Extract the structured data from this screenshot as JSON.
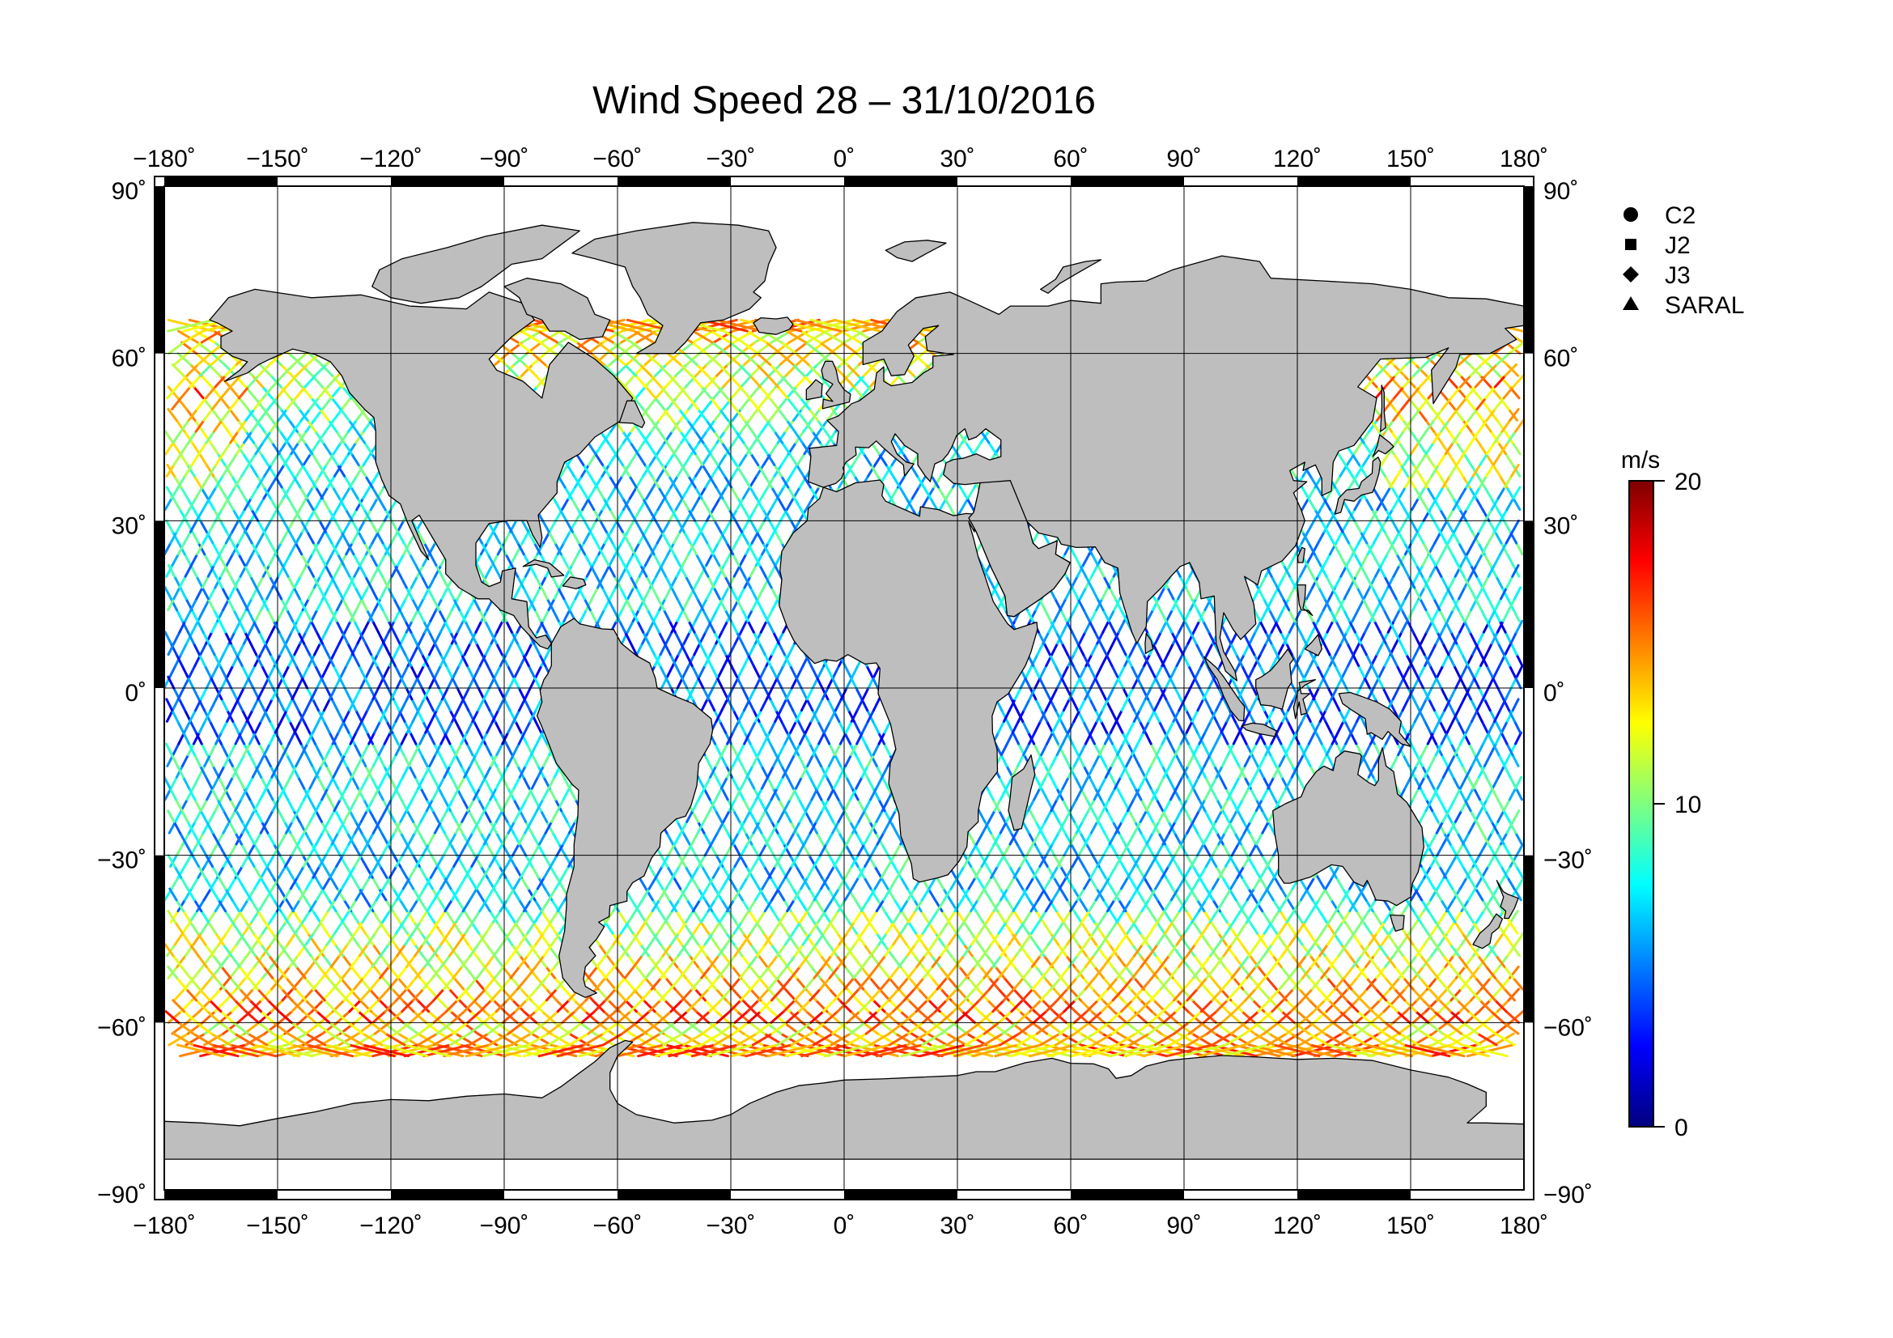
{
  "title": "Wind Speed 28 – 31/10/2016",
  "map": {
    "projection": "equirectangular",
    "lon_range": [
      -180,
      180
    ],
    "lat_range": [
      -90,
      90
    ],
    "lon_ticks": [
      -180,
      -150,
      -120,
      -90,
      -60,
      -30,
      0,
      30,
      60,
      90,
      120,
      150,
      180
    ],
    "lat_ticks": [
      90,
      60,
      30,
      0,
      -30,
      -60,
      -90
    ],
    "lon_tick_labels": [
      "−180˚",
      "−150˚",
      "−120˚",
      "−90˚",
      "−60˚",
      "−30˚",
      "0˚",
      "30˚",
      "60˚",
      "90˚",
      "120˚",
      "150˚",
      "180˚"
    ],
    "lat_tick_labels": [
      "90˚",
      "60˚",
      "30˚",
      "0˚",
      "−30˚",
      "−60˚",
      "−90˚"
    ],
    "grid": true,
    "land_color": "#bebebe",
    "ocean_color": "#ffffff"
  },
  "legend": {
    "placement": "right",
    "items": [
      {
        "symbol": "circle",
        "label": "C2"
      },
      {
        "symbol": "square",
        "label": "J2"
      },
      {
        "symbol": "diamond",
        "label": "J3"
      },
      {
        "symbol": "triangle",
        "label": "SARAL"
      }
    ]
  },
  "colorbar": {
    "unit": "m/s",
    "min": 0,
    "max": 20,
    "tick_values": [
      20,
      10,
      0
    ],
    "tick_labels": [
      "20",
      "10",
      "0"
    ],
    "colors": [
      "#00007f",
      "#0000ff",
      "#007fff",
      "#00ffff",
      "#7fff7f",
      "#ffff00",
      "#ff7f00",
      "#ff0000",
      "#7f0000"
    ]
  },
  "chart_data": {
    "type": "scatter",
    "title": "Wind Speed 28 – 31/10/2016",
    "xlim": [
      -180,
      180
    ],
    "ylim": [
      -90,
      90
    ],
    "value_range": [
      0,
      20
    ],
    "series": [
      {
        "name": "C2"
      },
      {
        "name": "J2"
      },
      {
        "name": "J3"
      },
      {
        "name": "SARAL"
      }
    ]
  }
}
